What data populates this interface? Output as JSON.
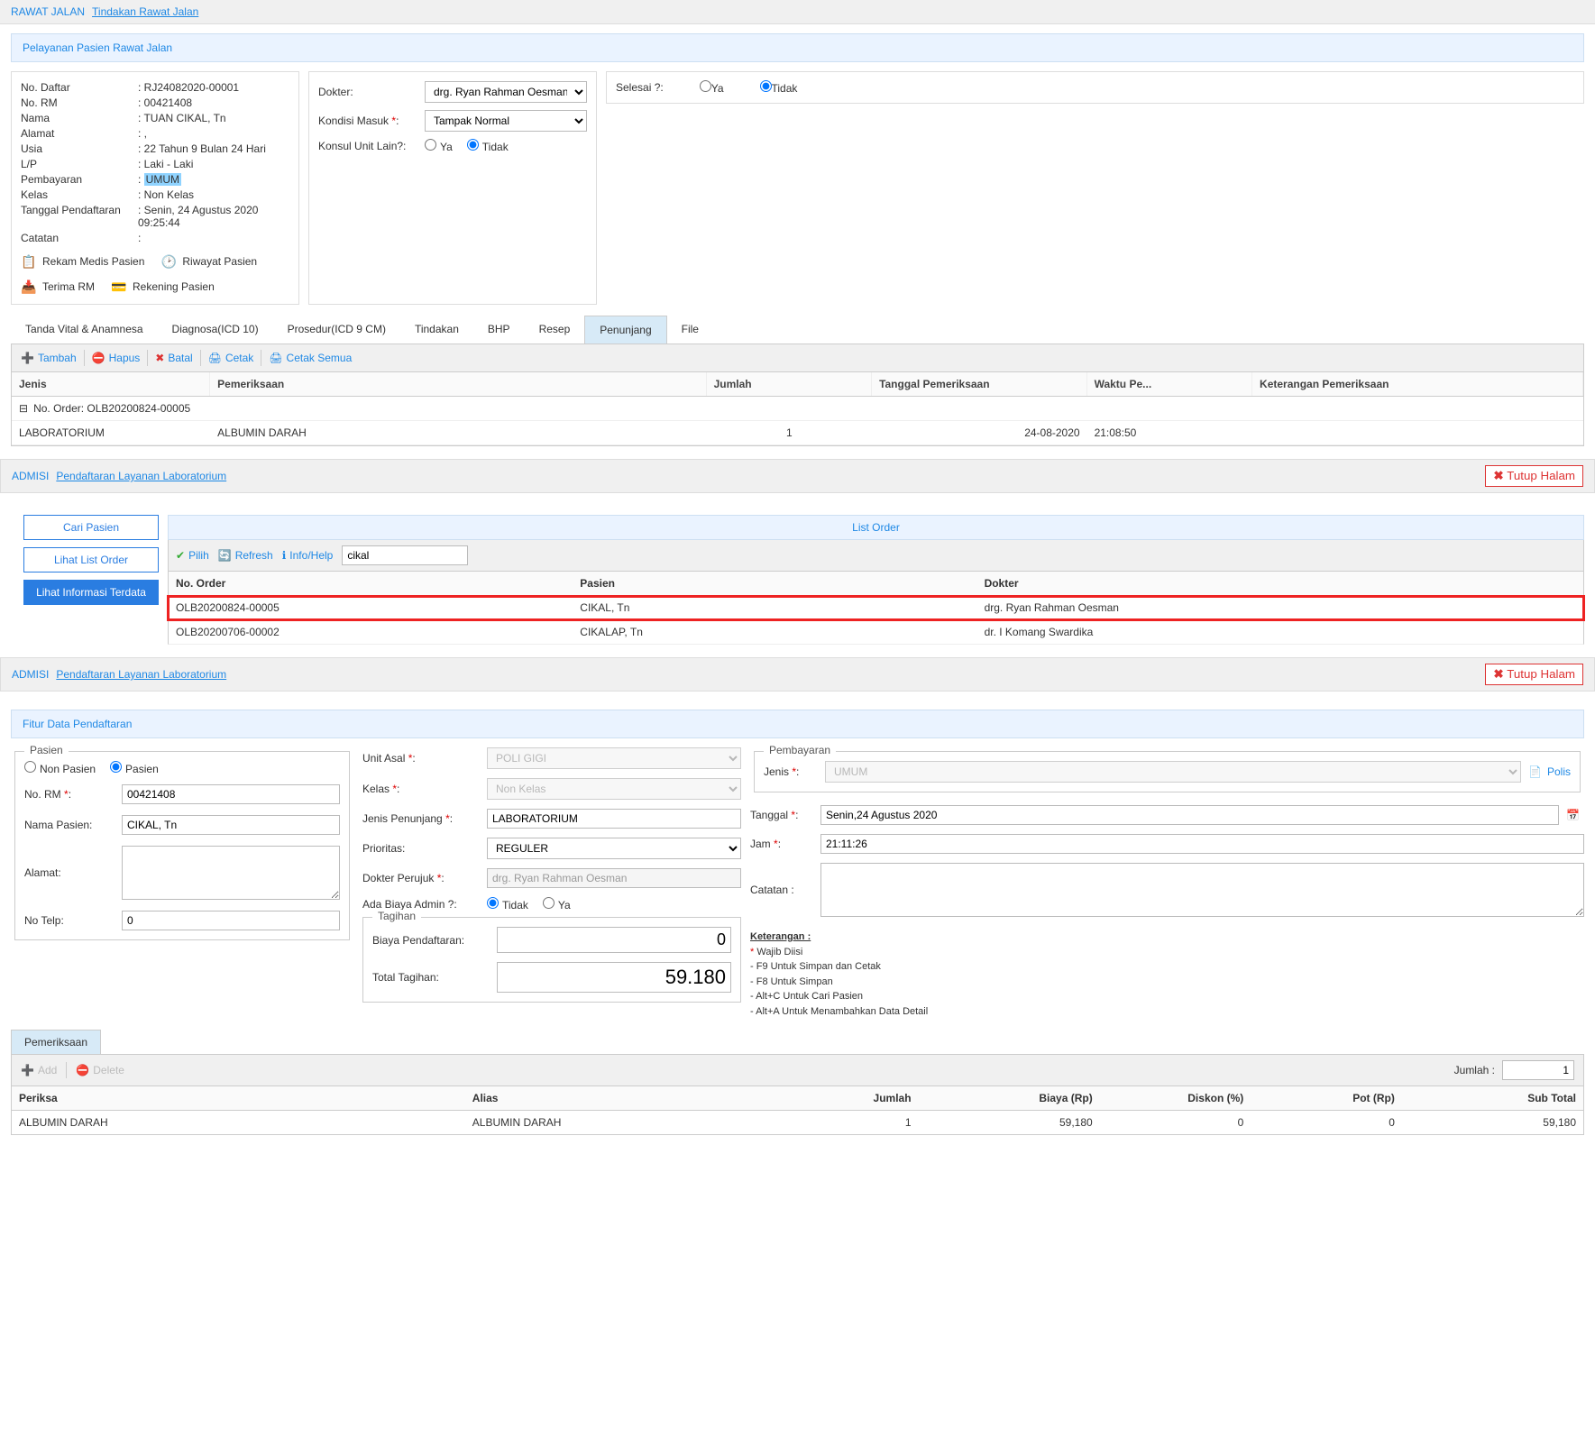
{
  "colors": {
    "accent": "#1e88e5",
    "danger": "#d33",
    "highlight": "#8fd3ff"
  },
  "bc1": {
    "label": "RAWAT JALAN",
    "link": "Tindakan Rawat Jalan"
  },
  "section1_title": "Pelayanan Pasien Rawat Jalan",
  "patient": {
    "no_daftar": {
      "lbl": "No. Daftar",
      "val": "RJ24082020-00001"
    },
    "no_rm": {
      "lbl": "No. RM",
      "val": "00421408"
    },
    "nama": {
      "lbl": "Nama",
      "val": "TUAN CIKAL, Tn"
    },
    "alamat": {
      "lbl": "Alamat",
      "val": ","
    },
    "usia": {
      "lbl": "Usia",
      "val": "22 Tahun 9 Bulan 24 Hari"
    },
    "lp": {
      "lbl": "L/P",
      "val": "Laki - Laki"
    },
    "pembayaran": {
      "lbl": "Pembayaran",
      "val": "UMUM"
    },
    "kelas": {
      "lbl": "Kelas",
      "val": "Non Kelas"
    },
    "tgl": {
      "lbl": "Tanggal Pendaftaran",
      "val": "Senin, 24 Agustus 2020 09:25:44"
    },
    "catatan": {
      "lbl": "Catatan",
      "val": ""
    }
  },
  "pbtn": {
    "rekam": "Rekam Medis Pasien",
    "riwayat": "Riwayat Pasien",
    "terima": "Terima RM",
    "rekening": "Rekening Pasien"
  },
  "form1": {
    "dokter": {
      "lbl": "Dokter:",
      "val": "drg. Ryan Rahman Oesman"
    },
    "kondisi": {
      "lbl": "Kondisi Masuk",
      "val": "Tampak Normal"
    },
    "konsul": {
      "lbl": "Konsul Unit Lain?:",
      "ya": "Ya",
      "tidak": "Tidak"
    }
  },
  "form2": {
    "lbl": "Selesai ?:",
    "ya": "Ya",
    "tidak": "Tidak"
  },
  "tabs": [
    "Tanda Vital & Anamnesa",
    "Diagnosa(ICD 10)",
    "Prosedur(ICD 9 CM)",
    "Tindakan",
    "BHP",
    "Resep",
    "Penunjang",
    "File"
  ],
  "active_tab": 6,
  "toolbar": {
    "tambah": "Tambah",
    "hapus": "Hapus",
    "batal": "Batal",
    "cetak": "Cetak",
    "cetak_semua": "Cetak Semua"
  },
  "penunjang_cols": [
    "Jenis",
    "Pemeriksaan",
    "Jumlah",
    "Tanggal Pemeriksaan",
    "Waktu Pe...",
    "Keterangan Pemeriksaan"
  ],
  "penunjang_group": "No. Order: OLB20200824-00005",
  "penunjang_rows": [
    {
      "jenis": "LABORATORIUM",
      "pemeriksaan": "ALBUMIN DARAH",
      "jumlah": "1",
      "tgl": "24-08-2020",
      "waktu": "21:08:50",
      "ket": ""
    }
  ],
  "admisi": {
    "lbl": "ADMISI",
    "link": "Pendaftaran Layanan Laboratorium",
    "close": "Tutup Halam"
  },
  "listorder": {
    "btn_cari": "Cari Pasien",
    "btn_list": "Lihat List Order",
    "btn_info": "Lihat Informasi Terdata",
    "title": "List Order",
    "pilih": "Pilih",
    "refresh": "Refresh",
    "info": "Info/Help",
    "search": "cikal",
    "cols": [
      "No. Order",
      "Pasien",
      "Dokter"
    ],
    "rows": [
      {
        "no": "OLB20200824-00005",
        "pasien": "CIKAL, Tn",
        "dokter": "drg. Ryan Rahman Oesman",
        "sel": true
      },
      {
        "no": "OLB20200706-00002",
        "pasien": "CIKALAP, Tn",
        "dokter": "dr. I Komang Swardika",
        "sel": false
      }
    ]
  },
  "fdp_title": "Fitur Data Pendaftaran",
  "pasien_fs": {
    "legend": "Pasien",
    "non": "Non Pasien",
    "pas": "Pasien",
    "no_rm": {
      "lbl": "No. RM",
      "val": "00421408"
    },
    "nama": {
      "lbl": "Nama Pasien:",
      "val": "CIKAL, Tn"
    },
    "alamat": {
      "lbl": "Alamat:",
      "val": ""
    },
    "telp": {
      "lbl": "No Telp:",
      "val": "0"
    }
  },
  "mid": {
    "unit": {
      "lbl": "Unit Asal",
      "val": "POLI GIGI"
    },
    "kelas": {
      "lbl": "Kelas",
      "val": "Non Kelas"
    },
    "jenis": {
      "lbl": "Jenis Penunjang",
      "val": "LABORATORIUM"
    },
    "prioritas": {
      "lbl": "Prioritas:",
      "val": "REGULER"
    },
    "dokter": {
      "lbl": "Dokter Perujuk",
      "val": "drg. Ryan Rahman Oesman"
    },
    "admin": {
      "lbl": "Ada Biaya Admin ?:",
      "tidak": "Tidak",
      "ya": "Ya"
    },
    "tagihan_legend": "Tagihan",
    "biaya": {
      "lbl": "Biaya Pendaftaran:",
      "val": "0"
    },
    "total": {
      "lbl": "Total Tagihan:",
      "val": "59.180"
    }
  },
  "pay": {
    "legend": "Pembayaran",
    "jenis": {
      "lbl": "Jenis",
      "val": "UMUM"
    },
    "polis": "Polis",
    "tgl": {
      "lbl": "Tanggal",
      "val": "Senin,24 Agustus 2020"
    },
    "jam": {
      "lbl": "Jam",
      "val": "21:11:26"
    },
    "catatan": {
      "lbl": "Catatan :",
      "val": ""
    }
  },
  "ket": {
    "title": "Keterangan :",
    "wajib": "Wajib Diisi",
    "l1": "- F9 Untuk Simpan dan Cetak",
    "l2": "- F8 Untuk Simpan",
    "l3": "- Alt+C Untuk Cari Pasien",
    "l4": "- Alt+A Untuk Menambahkan Data Detail"
  },
  "pm": {
    "tab": "Pemeriksaan",
    "add": "Add",
    "del": "Delete",
    "jumlah_lbl": "Jumlah :",
    "jumlah_val": "1",
    "cols": [
      "Periksa",
      "Alias",
      "Jumlah",
      "Biaya (Rp)",
      "Diskon (%)",
      "Pot (Rp)",
      "Sub Total"
    ],
    "row": {
      "periksa": "ALBUMIN DARAH",
      "alias": "ALBUMIN DARAH",
      "jumlah": "1",
      "biaya": "59,180",
      "diskon": "0",
      "pot": "0",
      "sub": "59,180"
    }
  }
}
